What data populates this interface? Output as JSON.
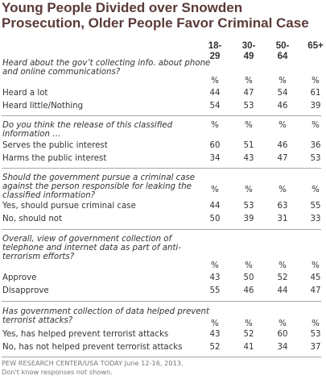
{
  "chart_data": {
    "type": "table",
    "title": "Young People Divided over Snowden Prosecution, Older People Favor Criminal Case",
    "columns": [
      "18-29",
      "30-49",
      "50-64",
      "65+"
    ],
    "column_header_lines": [
      [
        "18-",
        "29"
      ],
      [
        "30-",
        "49"
      ],
      [
        "50-",
        "64"
      ],
      [
        "65+"
      ]
    ],
    "unit_label": "%",
    "sections": [
      {
        "question": "Heard about the gov’t collecting info. about phone and online communications?",
        "rows": [
          {
            "label": "Heard a lot",
            "values": [
              44,
              47,
              54,
              61
            ]
          },
          {
            "label": "Heard little/Nothing",
            "values": [
              54,
              53,
              46,
              39
            ]
          }
        ]
      },
      {
        "question": "Do you think the release of this classified information …",
        "rows": [
          {
            "label": "Serves the public interest",
            "values": [
              60,
              51,
              46,
              36
            ]
          },
          {
            "label": "Harms the public interest",
            "values": [
              34,
              43,
              47,
              53
            ]
          }
        ]
      },
      {
        "question": "Should the government pursue a criminal case against the person responsible for leaking the classified information?",
        "rows": [
          {
            "label": "Yes, should pursue criminal case",
            "values": [
              44,
              53,
              63,
              55
            ]
          },
          {
            "label": "No, should not",
            "values": [
              50,
              39,
              31,
              33
            ]
          }
        ]
      },
      {
        "question": "Overall, view of government collection of telephone and internet data as part of anti-terrorism efforts?",
        "rows": [
          {
            "label": "Approve",
            "values": [
              43,
              50,
              52,
              45
            ]
          },
          {
            "label": "Disapprove",
            "values": [
              55,
              46,
              44,
              47
            ]
          }
        ]
      },
      {
        "question": "Has government collection of data helped prevent terrorist attacks?",
        "rows": [
          {
            "label": "Yes, has helped prevent terrorist attacks",
            "values": [
              43,
              52,
              60,
              53
            ]
          },
          {
            "label": "No, has not helped prevent terrorist attacks",
            "values": [
              52,
              41,
              34,
              37
            ]
          }
        ]
      }
    ],
    "notes": [
      "PEW RESEARCH CENTER/USA TODAY June 12-16, 2013.",
      "Don't know responses not shown."
    ],
    "colors": {
      "title": "#5a3a3a",
      "text": "#333333",
      "rule": "#a8a8a8",
      "note": "#777777"
    }
  }
}
